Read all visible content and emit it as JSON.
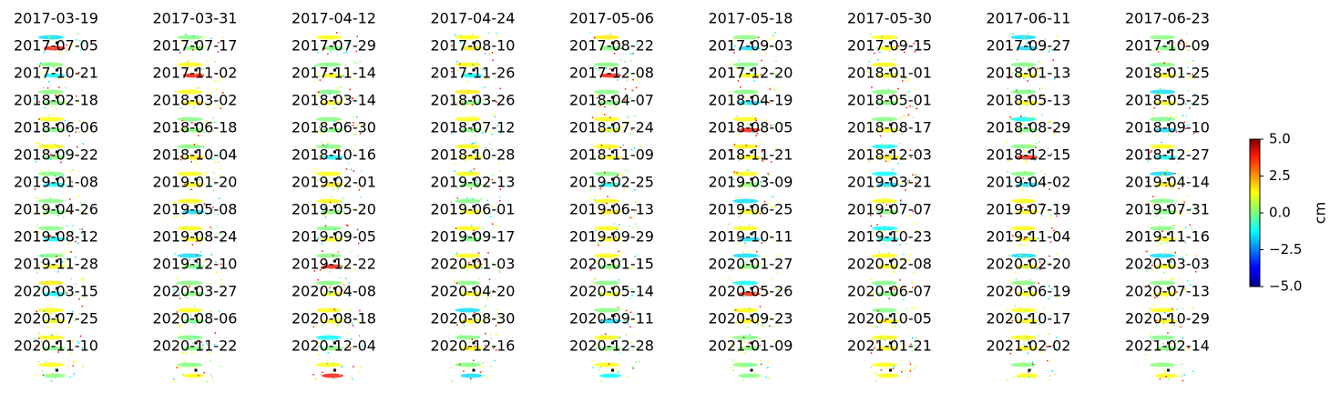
{
  "chart_data": {
    "type": "image-grid",
    "cmap": "jet",
    "columns": 9,
    "titles": [
      "2017-03-19",
      "2017-03-31",
      "2017-04-12",
      "2017-04-24",
      "2017-05-06",
      "2017-05-18",
      "2017-05-30",
      "2017-06-11",
      "2017-06-23",
      "2017-07-05",
      "2017-07-17",
      "2017-07-29",
      "2017-08-10",
      "2017-08-22",
      "2017-09-03",
      "2017-09-15",
      "2017-09-27",
      "2017-10-09",
      "2017-10-21",
      "2017-11-02",
      "2017-11-14",
      "2017-11-26",
      "2017-12-08",
      "2017-12-20",
      "2018-01-01",
      "2018-01-13",
      "2018-01-25",
      "2018-02-18",
      "2018-03-02",
      "2018-03-14",
      "2018-03-26",
      "2018-04-07",
      "2018-04-19",
      "2018-05-01",
      "2018-05-13",
      "2018-05-25",
      "2018-06-06",
      "2018-06-18",
      "2018-06-30",
      "2018-07-12",
      "2018-07-24",
      "2018-08-05",
      "2018-08-17",
      "2018-08-29",
      "2018-09-10",
      "2018-09-22",
      "2018-10-04",
      "2018-10-16",
      "2018-10-28",
      "2018-11-09",
      "2018-11-21",
      "2018-12-03",
      "2018-12-15",
      "2018-12-27",
      "2019-01-08",
      "2019-01-20",
      "2019-02-01",
      "2019-02-13",
      "2019-02-25",
      "2019-03-09",
      "2019-03-21",
      "2019-04-02",
      "2019-04-14",
      "2019-04-26",
      "2019-05-08",
      "2019-05-20",
      "2019-06-01",
      "2019-06-13",
      "2019-06-25",
      "2019-07-07",
      "2019-07-19",
      "2019-07-31",
      "2019-08-12",
      "2019-08-24",
      "2019-09-05",
      "2019-09-17",
      "2019-09-29",
      "2019-10-11",
      "2019-10-23",
      "2019-11-04",
      "2019-11-16",
      "2019-11-28",
      "2019-12-10",
      "2019-12-22",
      "2020-01-03",
      "2020-01-15",
      "2020-01-27",
      "2020-02-08",
      "2020-02-20",
      "2020-03-03",
      "2020-03-15",
      "2020-03-27",
      "2020-04-08",
      "2020-04-20",
      "2020-05-14",
      "2020-05-26",
      "2020-06-07",
      "2020-06-19",
      "2020-07-13",
      "2020-07-25",
      "2020-08-06",
      "2020-08-18",
      "2020-08-30",
      "2020-09-11",
      "2020-09-23",
      "2020-10-05",
      "2020-10-17",
      "2020-10-29",
      "2020-11-10",
      "2020-11-22",
      "2020-12-04",
      "2020-12-16",
      "2020-12-28",
      "2021-01-09",
      "2021-01-21",
      "2021-02-02",
      "2021-02-14"
    ],
    "colorbar": {
      "label": "cm",
      "clim": [
        -5,
        5
      ],
      "cticks": [
        {
          "value": -5,
          "label": "−5.0"
        },
        {
          "value": -2.5,
          "label": "−2.5"
        },
        {
          "value": 0,
          "label": "0.0"
        },
        {
          "value": 2.5,
          "label": "2.5"
        },
        {
          "value": 5,
          "label": "5.0"
        }
      ]
    }
  }
}
